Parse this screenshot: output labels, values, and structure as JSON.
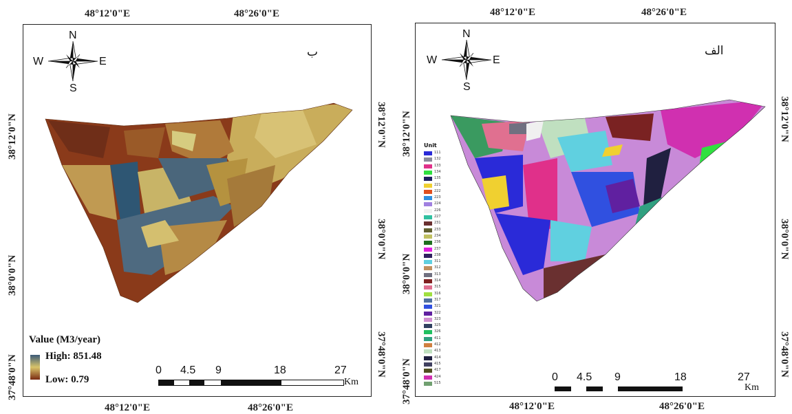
{
  "left_map": {
    "label": "ب",
    "top_coords": [
      "48°12'0\"E",
      "48°26'0\"E"
    ],
    "bottom_coords": [
      "48°12'0\"E",
      "48°26'0\"E"
    ],
    "left_coords": [
      "38°12'0\"N",
      "38°0'0\"N",
      "37°48'0\"N"
    ],
    "right_coords": [
      "38°12'0\"N",
      "38°0'0\"N",
      "37°48'0\"N"
    ],
    "compass": {
      "n": "N",
      "s": "S",
      "e": "E",
      "w": "W"
    },
    "legend": {
      "title": "Value (M3/year)",
      "high": "High: 851.48",
      "low": "Low: 0.79",
      "high_color": "#3b5a78",
      "mid_color": "#d9c46a",
      "low_color": "#7a2a12"
    },
    "scalebar": {
      "ticks": [
        "0",
        "4.5",
        "9",
        "18",
        "27"
      ],
      "unit": "Km"
    }
  },
  "right_map": {
    "label": "الف",
    "top_coords": [
      "48°12'0\"E",
      "48°26'0\"E"
    ],
    "bottom_coords": [
      "48°12'0\"E",
      "48°26'0\"E"
    ],
    "left_coords": [
      "38°12'0\"N",
      "38°0'0\"N",
      "37°48'0\"N"
    ],
    "right_coords": [
      "38°12'0\"N",
      "38°0'0\"N",
      "37°48'0\"N"
    ],
    "compass": {
      "n": "N",
      "s": "S",
      "e": "E",
      "w": "W"
    },
    "legend": {
      "title": "Unit",
      "units": [
        {
          "code": "111",
          "color": "#2a2ad8"
        },
        {
          "code": "132",
          "color": "#8a8a9a"
        },
        {
          "code": "133",
          "color": "#e0308a"
        },
        {
          "code": "134",
          "color": "#30e040"
        },
        {
          "code": "135",
          "color": "#202060"
        },
        {
          "code": "221",
          "color": "#f0d030"
        },
        {
          "code": "222",
          "color": "#e05020"
        },
        {
          "code": "223",
          "color": "#3090e0"
        },
        {
          "code": "224",
          "color": "#a080e0"
        },
        {
          "code": "226",
          "color": "#f0f0f0"
        },
        {
          "code": "227",
          "color": "#30c0a0"
        },
        {
          "code": "231",
          "color": "#6a3030"
        },
        {
          "code": "233",
          "color": "#606030"
        },
        {
          "code": "234",
          "color": "#c0c060"
        },
        {
          "code": "236",
          "color": "#207020"
        },
        {
          "code": "237",
          "color": "#e020e0"
        },
        {
          "code": "238",
          "color": "#302060"
        },
        {
          "code": "311",
          "color": "#60d0e0"
        },
        {
          "code": "312",
          "color": "#c09060"
        },
        {
          "code": "313",
          "color": "#707080"
        },
        {
          "code": "314",
          "color": "#802020"
        },
        {
          "code": "315",
          "color": "#e07090"
        },
        {
          "code": "316",
          "color": "#a0e040"
        },
        {
          "code": "317",
          "color": "#5070a0"
        },
        {
          "code": "321",
          "color": "#3050e0"
        },
        {
          "code": "322",
          "color": "#6020a0"
        },
        {
          "code": "323",
          "color": "#d090d0"
        },
        {
          "code": "325",
          "color": "#304060"
        },
        {
          "code": "326",
          "color": "#20c060"
        },
        {
          "code": "411",
          "color": "#30a080"
        },
        {
          "code": "412",
          "color": "#d08040"
        },
        {
          "code": "413",
          "color": "#c0e0c0"
        },
        {
          "code": "414",
          "color": "#202040"
        },
        {
          "code": "415",
          "color": "#404060"
        },
        {
          "code": "417",
          "color": "#505020"
        },
        {
          "code": "424",
          "color": "#d030b0"
        },
        {
          "code": "515",
          "color": "#70a070"
        }
      ]
    },
    "scalebar": {
      "ticks": [
        "0",
        "4.5",
        "9",
        "18",
        "27"
      ],
      "unit": "Km"
    }
  }
}
